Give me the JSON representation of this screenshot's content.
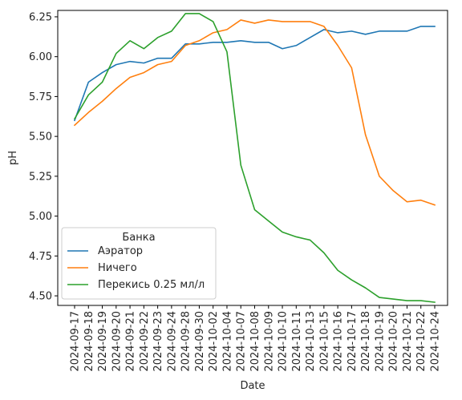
{
  "chart_data": {
    "type": "line",
    "xlabel": "Date",
    "ylabel": "pH",
    "ylim": [
      4.44,
      6.29
    ],
    "yticks": [
      "4.50",
      "4.75",
      "5.00",
      "5.25",
      "5.50",
      "5.75",
      "6.00",
      "6.25"
    ],
    "grid": false,
    "legend": {
      "title": "Банка",
      "placement": "lower-left"
    },
    "x": [
      "2024-09-17",
      "2024-09-18",
      "2024-09-19",
      "2024-09-20",
      "2024-09-21",
      "2024-09-22",
      "2024-09-23",
      "2024-09-24",
      "2024-09-28",
      "2024-09-30",
      "2024-10-02",
      "2024-10-04",
      "2024-10-07",
      "2024-10-08",
      "2024-10-09",
      "2024-10-10",
      "2024-10-11",
      "2024-10-13",
      "2024-10-15",
      "2024-10-16",
      "2024-10-17",
      "2024-10-18",
      "2024-10-19",
      "2024-10-20",
      "2024-10-21",
      "2024-10-22",
      "2024-10-24"
    ],
    "series": [
      {
        "name": "Аэратор",
        "color": "#1f77b4",
        "values": [
          5.6,
          5.84,
          5.9,
          5.95,
          5.97,
          5.96,
          5.99,
          5.99,
          6.08,
          6.08,
          6.09,
          6.09,
          6.1,
          6.09,
          6.09,
          6.05,
          6.07,
          6.12,
          6.17,
          6.15,
          6.16,
          6.14,
          6.16,
          6.16,
          6.16,
          6.19,
          6.19
        ]
      },
      {
        "name": "Ничего",
        "color": "#ff7f0e",
        "values": [
          5.57,
          5.65,
          5.72,
          5.8,
          5.87,
          5.9,
          5.95,
          5.97,
          6.07,
          6.1,
          6.15,
          6.17,
          6.23,
          6.21,
          6.23,
          6.22,
          6.22,
          6.22,
          6.19,
          6.07,
          5.93,
          5.51,
          5.25,
          5.16,
          5.09,
          5.1,
          5.07
        ]
      },
      {
        "name": "Перекись 0.25 мл/л",
        "color": "#2ca02c",
        "values": [
          5.61,
          5.76,
          5.84,
          6.02,
          6.1,
          6.05,
          6.12,
          6.16,
          6.27,
          6.27,
          6.22,
          6.03,
          5.32,
          5.04,
          4.97,
          4.9,
          4.87,
          4.85,
          4.77,
          4.66,
          4.6,
          4.55,
          4.49,
          4.48,
          4.47,
          4.47,
          4.46
        ]
      }
    ]
  }
}
